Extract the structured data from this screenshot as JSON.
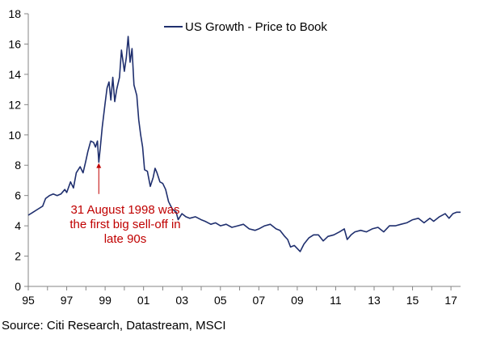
{
  "chart_data": {
    "type": "line",
    "title": "",
    "xlabel": "",
    "ylabel": "",
    "xlim": [
      1995.0,
      2017.5
    ],
    "ylim": [
      0,
      18
    ],
    "yticks": [
      0,
      2,
      4,
      6,
      8,
      10,
      12,
      14,
      16,
      18
    ],
    "xticks": [
      {
        "value": 1995,
        "label": "95"
      },
      {
        "value": 1997,
        "label": "97"
      },
      {
        "value": 1999,
        "label": "99"
      },
      {
        "value": 2001,
        "label": "01"
      },
      {
        "value": 2003,
        "label": "03"
      },
      {
        "value": 2005,
        "label": "05"
      },
      {
        "value": 2007,
        "label": "07"
      },
      {
        "value": 2009,
        "label": "09"
      },
      {
        "value": 2011,
        "label": "11"
      },
      {
        "value": 2013,
        "label": "13"
      },
      {
        "value": 2015,
        "label": "15"
      },
      {
        "value": 2017,
        "label": "17"
      }
    ],
    "grid": false,
    "legend": {
      "position": "top-center",
      "entries": [
        "US Growth - Price to Book"
      ]
    },
    "series": [
      {
        "name": "US Growth - Price to Book",
        "color": "#1f2f6e",
        "points": [
          [
            1995.0,
            4.7
          ],
          [
            1995.25,
            4.9
          ],
          [
            1995.5,
            5.1
          ],
          [
            1995.75,
            5.3
          ],
          [
            1995.9,
            5.8
          ],
          [
            1996.1,
            6.0
          ],
          [
            1996.3,
            6.1
          ],
          [
            1996.5,
            6.0
          ],
          [
            1996.7,
            6.1
          ],
          [
            1996.9,
            6.4
          ],
          [
            1997.0,
            6.2
          ],
          [
            1997.2,
            6.9
          ],
          [
            1997.35,
            6.5
          ],
          [
            1997.5,
            7.5
          ],
          [
            1997.7,
            7.9
          ],
          [
            1997.85,
            7.5
          ],
          [
            1998.0,
            8.3
          ],
          [
            1998.1,
            8.9
          ],
          [
            1998.25,
            9.6
          ],
          [
            1998.4,
            9.5
          ],
          [
            1998.5,
            9.2
          ],
          [
            1998.6,
            9.6
          ],
          [
            1998.67,
            8.2
          ],
          [
            1998.75,
            9.2
          ],
          [
            1998.85,
            10.5
          ],
          [
            1999.0,
            12.1
          ],
          [
            1999.1,
            13.1
          ],
          [
            1999.2,
            13.5
          ],
          [
            1999.3,
            12.3
          ],
          [
            1999.4,
            13.8
          ],
          [
            1999.5,
            12.2
          ],
          [
            1999.6,
            13.0
          ],
          [
            1999.75,
            13.8
          ],
          [
            1999.85,
            15.6
          ],
          [
            2000.0,
            14.2
          ],
          [
            2000.1,
            15.1
          ],
          [
            2000.2,
            16.5
          ],
          [
            2000.3,
            14.8
          ],
          [
            2000.4,
            15.7
          ],
          [
            2000.5,
            13.3
          ],
          [
            2000.65,
            12.6
          ],
          [
            2000.75,
            11.0
          ],
          [
            2000.85,
            10.0
          ],
          [
            2000.95,
            9.2
          ],
          [
            2001.05,
            7.7
          ],
          [
            2001.2,
            7.6
          ],
          [
            2001.35,
            6.6
          ],
          [
            2001.5,
            7.2
          ],
          [
            2001.6,
            7.8
          ],
          [
            2001.7,
            7.5
          ],
          [
            2001.85,
            6.9
          ],
          [
            2002.0,
            6.8
          ],
          [
            2002.15,
            6.4
          ],
          [
            2002.3,
            5.6
          ],
          [
            2002.5,
            5.1
          ],
          [
            2002.7,
            4.9
          ],
          [
            2002.8,
            4.4
          ],
          [
            2003.0,
            4.8
          ],
          [
            2003.2,
            4.6
          ],
          [
            2003.4,
            4.5
          ],
          [
            2003.7,
            4.6
          ],
          [
            2004.0,
            4.4
          ],
          [
            2004.2,
            4.3
          ],
          [
            2004.5,
            4.1
          ],
          [
            2004.75,
            4.2
          ],
          [
            2005.0,
            4.0
          ],
          [
            2005.3,
            4.1
          ],
          [
            2005.6,
            3.9
          ],
          [
            2005.9,
            4.0
          ],
          [
            2006.2,
            4.1
          ],
          [
            2006.5,
            3.8
          ],
          [
            2006.8,
            3.7
          ],
          [
            2007.0,
            3.8
          ],
          [
            2007.3,
            4.0
          ],
          [
            2007.6,
            4.1
          ],
          [
            2007.9,
            3.8
          ],
          [
            2008.1,
            3.7
          ],
          [
            2008.35,
            3.3
          ],
          [
            2008.5,
            3.1
          ],
          [
            2008.65,
            2.6
          ],
          [
            2008.85,
            2.7
          ],
          [
            2009.0,
            2.5
          ],
          [
            2009.15,
            2.3
          ],
          [
            2009.35,
            2.8
          ],
          [
            2009.6,
            3.2
          ],
          [
            2009.85,
            3.4
          ],
          [
            2010.1,
            3.4
          ],
          [
            2010.35,
            3.0
          ],
          [
            2010.6,
            3.3
          ],
          [
            2010.9,
            3.4
          ],
          [
            2011.2,
            3.6
          ],
          [
            2011.45,
            3.8
          ],
          [
            2011.6,
            3.1
          ],
          [
            2011.8,
            3.4
          ],
          [
            2012.0,
            3.6
          ],
          [
            2012.3,
            3.7
          ],
          [
            2012.6,
            3.6
          ],
          [
            2012.9,
            3.8
          ],
          [
            2013.2,
            3.9
          ],
          [
            2013.5,
            3.6
          ],
          [
            2013.8,
            4.0
          ],
          [
            2014.1,
            4.0
          ],
          [
            2014.4,
            4.1
          ],
          [
            2014.7,
            4.2
          ],
          [
            2015.0,
            4.4
          ],
          [
            2015.3,
            4.5
          ],
          [
            2015.6,
            4.2
          ],
          [
            2015.9,
            4.5
          ],
          [
            2016.1,
            4.3
          ],
          [
            2016.4,
            4.6
          ],
          [
            2016.7,
            4.8
          ],
          [
            2016.9,
            4.5
          ],
          [
            2017.1,
            4.8
          ],
          [
            2017.3,
            4.9
          ],
          [
            2017.5,
            4.9
          ]
        ]
      }
    ],
    "annotations": [
      {
        "lines": [
          "31 August 1998 was",
          "the first big sell-off in",
          "late 90s"
        ],
        "color": "#c00000",
        "arrow_to": [
          1998.67,
          8.3
        ],
        "arrow_from": [
          1998.67,
          6.1
        ]
      }
    ]
  },
  "source": "Source: Citi Research, Datastream, MSCI"
}
